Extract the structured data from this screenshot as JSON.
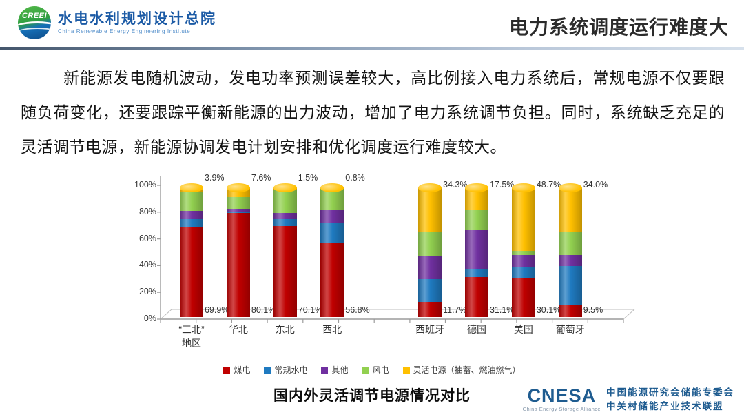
{
  "header": {
    "logo": {
      "acronym": "CREEI",
      "org_cn": "水电水利规划设计总院",
      "org_en": "China Renewable Energy Engineering Institute"
    },
    "title": "电力系统调度运行难度大"
  },
  "body": {
    "paragraph": "新能源发电随机波动，发电功率预测误差较大，高比例接入电力系统后，常规电源不仅要跟随负荷变化，还要跟踪平衡新能源的出力波动，增加了电力系统调节负担。同时，系统缺乏充足的灵活调节电源，新能源协调发电计划安排和优化调度运行难度较大。",
    "caption": "国内外灵活调节电源情况对比"
  },
  "chart_data": {
    "type": "bar",
    "stacked": true,
    "title": "国内外灵活调节电源情况对比",
    "categories": [
      "“三北”\n地区",
      "华北",
      "东北",
      "西北",
      "西班牙",
      "德国",
      "美国",
      "葡萄牙"
    ],
    "series": [
      {
        "name": "煤电",
        "color": "#c00000",
        "values": [
          69.9,
          80.1,
          70.1,
          56.8,
          11.7,
          31.1,
          30.1,
          9.5
        ]
      },
      {
        "name": "常规水电",
        "color": "#1f7ac0",
        "values": [
          5.5,
          1.5,
          5.3,
          15.5,
          17.5,
          6.0,
          8.3,
          30.0
        ]
      },
      {
        "name": "其他",
        "color": "#7030a0",
        "values": [
          6.4,
          1.8,
          4.7,
          10.5,
          17.5,
          30.0,
          9.5,
          8.6
        ]
      },
      {
        "name": "风电",
        "color": "#92d050",
        "values": [
          14.3,
          9.0,
          18.4,
          16.4,
          19.0,
          15.4,
          3.4,
          17.9
        ]
      },
      {
        "name": "灵活电源（抽蓄、燃油燃气）",
        "color": "#ffc000",
        "values": [
          3.9,
          7.6,
          1.5,
          0.8,
          34.3,
          17.5,
          48.7,
          34.0
        ]
      }
    ],
    "top_labels": [
      "3.9%",
      "7.6%",
      "1.5%",
      "0.8%",
      "34.3%",
      "17.5%",
      "48.7%",
      "34.0%"
    ],
    "bottom_labels": [
      "69.9%",
      "80.1%",
      "70.1%",
      "56.8%",
      "11.7%",
      "31.1%",
      "30.1%",
      "9.5%"
    ],
    "y_ticks": [
      "100%",
      "80%",
      "60%",
      "40%",
      "20%",
      "0%"
    ],
    "ylim": [
      0,
      100
    ],
    "grid": false,
    "legend_position": "bottom",
    "bar_centers_frac": [
      0.067,
      0.168,
      0.269,
      0.371,
      0.582,
      0.683,
      0.784,
      0.885
    ]
  },
  "footer": {
    "cnesa": {
      "wordmark": "CNESA",
      "tagline": "China Energy Storage Alliance",
      "line1": "中国能源研究会储能专委会",
      "line2": "中关村储能产业技术联盟"
    }
  }
}
